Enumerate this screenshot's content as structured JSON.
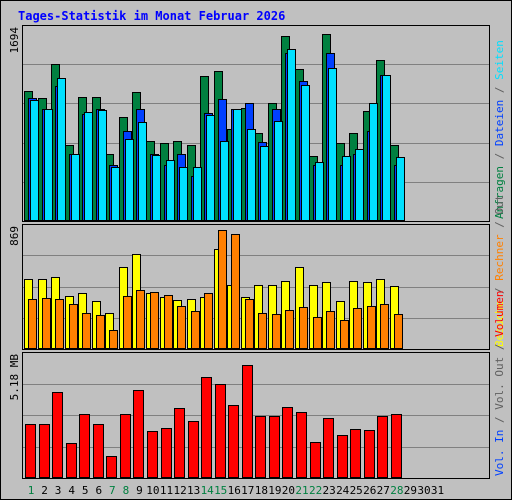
{
  "chart_data": {
    "type": "bar",
    "title": "Tages-Statistik im Monat Februar 2026",
    "days": [
      "1",
      "2",
      "3",
      "4",
      "5",
      "6",
      "7",
      "8",
      "9",
      "10",
      "11",
      "12",
      "13",
      "14",
      "15",
      "16",
      "17",
      "18",
      "19",
      "20",
      "21",
      "22",
      "23",
      "24",
      "25",
      "26",
      "27",
      "28",
      "29",
      "30",
      "31"
    ],
    "weekend_days": [
      "1",
      "7",
      "8",
      "14",
      "15",
      "21",
      "22",
      "28"
    ],
    "colors": {
      "background": "#C0C0C0",
      "frame": "#000000",
      "title": "#0000FF",
      "weekday_label": "#000000",
      "weekend_label": "#008040",
      "anfragen": "#008040",
      "dateien": "#0040FF",
      "seiten": "#00E0FF",
      "besuche": "#FFFF00",
      "rechner": "#FF8000",
      "volumen": "#FF0000",
      "grid": "#808080",
      "axis_label_gray": "#606060"
    },
    "panels": [
      {
        "max_label": "1694",
        "ymax": 1694,
        "right_labels": [
          {
            "text": "Anfragen",
            "color": "#008040"
          },
          {
            "text": "Dateien",
            "color": "#0040FF"
          },
          {
            "text": "Seiten",
            "color": "#00E0FF"
          }
        ],
        "series": [
          {
            "name": "Anfragen",
            "color": "#008040",
            "values": [
              1162,
              1099,
              1402,
              677,
              1104,
              1104,
              596,
              926,
              1152,
              712,
              691,
              712,
              682,
              1289,
              1335,
              822,
              1006,
              789,
              1055,
              1648,
              1353,
              580,
              1663,
              691,
              789,
              982,
              1438,
              677,
              0,
              0,
              0
            ]
          },
          {
            "name": "Dateien",
            "color": "#0040FF",
            "values": [
              1100,
              1000,
              1200,
              600,
              950,
              1000,
              500,
              800,
              1000,
              600,
              500,
              600,
              400,
              960,
              1090,
              1000,
              1050,
              700,
              1000,
              1500,
              1250,
              500,
              1500,
              500,
              600,
              800,
              1300,
              500,
              0,
              0,
              0
            ]
          },
          {
            "name": "Seiten",
            "color": "#00E0FF",
            "values": [
              1080,
              1000,
              1274,
              593,
              968,
              990,
              485,
              733,
              879,
              588,
              547,
              485,
              485,
              948,
              709,
              1000,
              817,
              667,
              896,
              1535,
              1214,
              526,
              1361,
              583,
              638,
              1052,
              1301,
              567,
              0,
              0,
              0
            ]
          }
        ]
      },
      {
        "max_label": "869",
        "ymax": 869,
        "right_labels": [
          {
            "text": "Besuche",
            "color": "#FFFF00"
          },
          {
            "text": "Rechner",
            "color": "#FF8000"
          },
          {
            "text": "Out",
            "color": "#606060"
          }
        ],
        "series": [
          {
            "name": "Besuche",
            "color": "#FFFF00",
            "values": [
              509,
              509,
              525,
              389,
              412,
              354,
              262,
              598,
              695,
              412,
              377,
              358,
              362,
              381,
              733,
              466,
              377,
              466,
              470,
              497,
              598,
              466,
              486,
              354,
              497,
              486,
              509,
              458,
              0,
              0,
              0
            ]
          },
          {
            "name": "Rechner",
            "color": "#FF8000",
            "values": [
              365,
              373,
              362,
              331,
              261,
              251,
              140,
              389,
              434,
              416,
              391,
              311,
              278,
              412,
              869,
              837,
              362,
              261,
              256,
              286,
              307,
              233,
              280,
              209,
              302,
              311,
              330,
              257,
              0,
              0,
              0
            ]
          }
        ]
      },
      {
        "max_label": "5.18 MB",
        "ymax": 5.18,
        "right_labels": [
          {
            "text": "Vol. In",
            "color": "#0040FF"
          },
          {
            "text": "Vol. Out",
            "color": "#606060"
          },
          {
            "text": "Volumen",
            "color": "#FF0000"
          }
        ],
        "series": [
          {
            "name": "Volumen",
            "color": "#FF0000",
            "values": [
              2.31,
              2.31,
              3.72,
              1.53,
              2.75,
              2.31,
              0.93,
              2.75,
              3.8,
              2.01,
              2.14,
              3.02,
              2.45,
              4.36,
              4.06,
              3.17,
              4.87,
              2.68,
              2.68,
              3.06,
              2.83,
              1.57,
              2.61,
              1.87,
              2.12,
              2.07,
              2.66,
              2.78,
              0,
              0,
              0
            ]
          }
        ]
      }
    ]
  }
}
